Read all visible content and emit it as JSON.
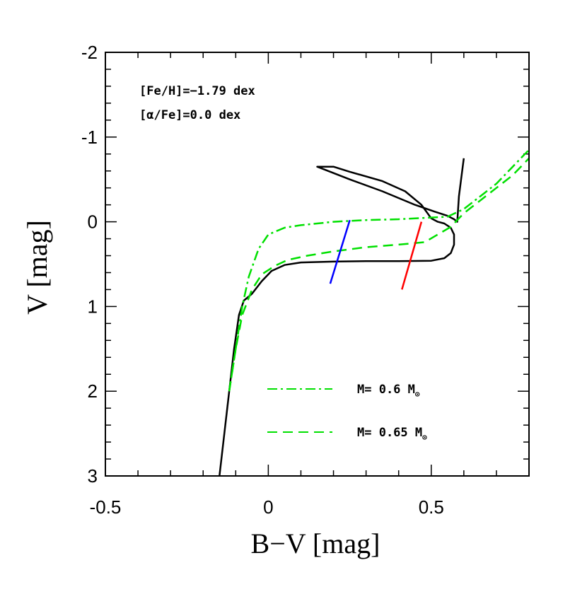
{
  "chart_data": {
    "type": "line",
    "title": "",
    "xlabel": "B−V  [mag]",
    "ylabel": "V  [mag]",
    "xlim": [
      -0.5,
      0.8
    ],
    "ylim": [
      3,
      -2
    ],
    "x_ticks": [
      {
        "value": -0.5,
        "label": "-0.5"
      },
      {
        "value": 0,
        "label": "0"
      },
      {
        "value": 0.5,
        "label": "0.5"
      }
    ],
    "y_ticks": [
      {
        "value": -2,
        "label": "-2"
      },
      {
        "value": -1,
        "label": "-1"
      },
      {
        "value": 0,
        "label": "0"
      },
      {
        "value": 1,
        "label": "1"
      },
      {
        "value": 2,
        "label": "2"
      },
      {
        "value": 3,
        "label": "3"
      }
    ],
    "annotations": [
      {
        "text": "[Fe/H]=−1.79 dex"
      },
      {
        "text": "[α/Fe]=0.0 dex"
      }
    ],
    "legend": [
      {
        "label": "M=  0.6 M",
        "subscript": "⊙",
        "style": "dash-dot",
        "color": "#00e000"
      },
      {
        "label": "M=  0.65 M",
        "subscript": "⊙",
        "style": "dashed",
        "color": "#00e000"
      }
    ],
    "legend_position": "bottom-right",
    "series": [
      {
        "name": "isochrone",
        "color": "#000000",
        "style": "solid",
        "points": [
          [
            -0.15,
            3.0
          ],
          [
            -0.135,
            2.5
          ],
          [
            -0.12,
            2.0
          ],
          [
            -0.105,
            1.5
          ],
          [
            -0.09,
            1.1
          ],
          [
            -0.075,
            0.93
          ],
          [
            -0.05,
            0.85
          ],
          [
            -0.02,
            0.7
          ],
          [
            0.01,
            0.58
          ],
          [
            0.05,
            0.51
          ],
          [
            0.1,
            0.48
          ],
          [
            0.2,
            0.47
          ],
          [
            0.3,
            0.465
          ],
          [
            0.4,
            0.465
          ],
          [
            0.5,
            0.46
          ],
          [
            0.54,
            0.43
          ],
          [
            0.56,
            0.37
          ],
          [
            0.57,
            0.27
          ],
          [
            0.57,
            0.15
          ],
          [
            0.56,
            0.07
          ],
          [
            0.54,
            0.02
          ],
          [
            0.52,
            0.0
          ],
          [
            0.5,
            -0.04
          ],
          [
            0.47,
            -0.2
          ],
          [
            0.42,
            -0.36
          ],
          [
            0.35,
            -0.48
          ],
          [
            0.25,
            -0.59
          ],
          [
            0.2,
            -0.65
          ],
          [
            0.15,
            -0.65
          ],
          [
            0.25,
            -0.5
          ],
          [
            0.35,
            -0.36
          ],
          [
            0.45,
            -0.2
          ],
          [
            0.51,
            -0.12
          ],
          [
            0.55,
            -0.07
          ],
          [
            0.57,
            -0.03
          ],
          [
            0.58,
            0.0
          ],
          [
            0.585,
            -0.3
          ],
          [
            0.6,
            -0.75
          ]
        ]
      },
      {
        "name": "M= 0.6 Mo",
        "color": "#00e000",
        "style": "dash-dot",
        "points": [
          [
            -0.12,
            2.0
          ],
          [
            -0.1,
            1.5
          ],
          [
            -0.08,
            1.0
          ],
          [
            -0.06,
            0.65
          ],
          [
            -0.03,
            0.32
          ],
          [
            0.0,
            0.15
          ],
          [
            0.05,
            0.07
          ],
          [
            0.1,
            0.04
          ],
          [
            0.2,
            0.0
          ],
          [
            0.3,
            -0.02
          ],
          [
            0.4,
            -0.03
          ],
          [
            0.5,
            -0.05
          ],
          [
            0.55,
            -0.06
          ],
          [
            0.6,
            -0.15
          ],
          [
            0.65,
            -0.3
          ],
          [
            0.7,
            -0.45
          ],
          [
            0.75,
            -0.65
          ],
          [
            0.8,
            -0.85
          ]
        ]
      },
      {
        "name": "M= 0.65 Mo",
        "color": "#00e000",
        "style": "dashed",
        "points": [
          [
            -0.12,
            2.0
          ],
          [
            -0.1,
            1.5
          ],
          [
            -0.08,
            1.1
          ],
          [
            -0.05,
            0.8
          ],
          [
            -0.02,
            0.62
          ],
          [
            0.02,
            0.52
          ],
          [
            0.06,
            0.45
          ],
          [
            0.12,
            0.4
          ],
          [
            0.2,
            0.35
          ],
          [
            0.3,
            0.3
          ],
          [
            0.4,
            0.27
          ],
          [
            0.48,
            0.24
          ],
          [
            0.52,
            0.15
          ],
          [
            0.56,
            0.06
          ],
          [
            0.6,
            -0.1
          ],
          [
            0.65,
            -0.25
          ],
          [
            0.7,
            -0.4
          ],
          [
            0.75,
            -0.55
          ],
          [
            0.8,
            -0.75
          ]
        ]
      },
      {
        "name": "blue-edge",
        "color": "#0000ff",
        "style": "solid",
        "points": [
          [
            0.19,
            0.73
          ],
          [
            0.25,
            -0.02
          ]
        ]
      },
      {
        "name": "red-edge",
        "color": "#ff0000",
        "style": "solid",
        "points": [
          [
            0.41,
            0.8
          ],
          [
            0.47,
            0.0
          ]
        ]
      }
    ]
  }
}
